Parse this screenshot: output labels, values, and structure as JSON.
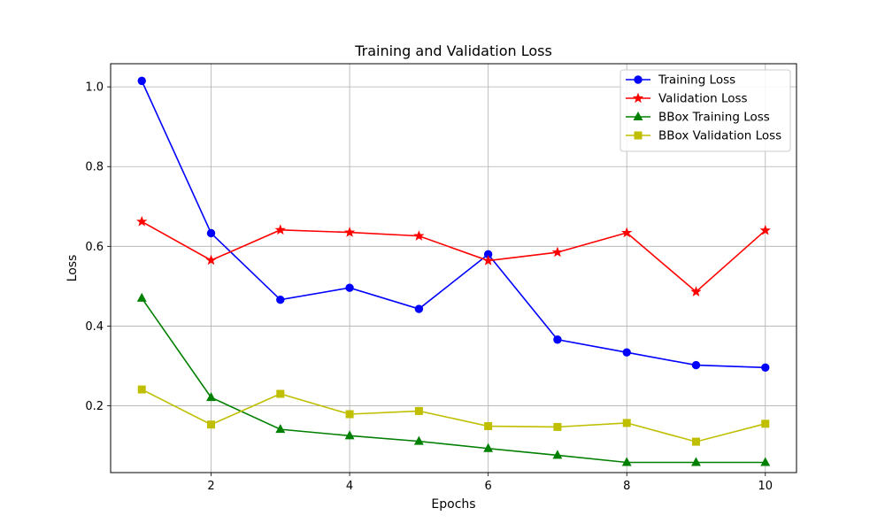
{
  "chart_data": {
    "type": "line",
    "title": "Training and Validation Loss",
    "xlabel": "Epochs",
    "ylabel": "Loss",
    "x": [
      1,
      2,
      3,
      4,
      5,
      6,
      7,
      8,
      9,
      10
    ],
    "xlim": [
      0.55,
      10.45
    ],
    "ylim": [
      0.0325,
      1.058
    ],
    "xticks": [
      2,
      4,
      6,
      8,
      10
    ],
    "yticks": [
      0.2,
      0.4,
      0.6,
      0.8,
      1.0
    ],
    "grid": true,
    "legend_position": "top-right",
    "series": [
      {
        "name": "Training Loss",
        "color": "#0000ff",
        "marker": "circle",
        "values": [
          1.015,
          0.633,
          0.466,
          0.496,
          0.443,
          0.58,
          0.366,
          0.334,
          0.302,
          0.296
        ]
      },
      {
        "name": "Validation Loss",
        "color": "#ff0000",
        "marker": "star",
        "values": [
          0.662,
          0.565,
          0.641,
          0.635,
          0.626,
          0.564,
          0.585,
          0.634,
          0.486,
          0.64
        ]
      },
      {
        "name": "BBox Training Loss",
        "color": "#008000",
        "marker": "triangle",
        "values": [
          0.47,
          0.221,
          0.141,
          0.125,
          0.111,
          0.093,
          0.076,
          0.058,
          0.058,
          0.058
        ]
      },
      {
        "name": "BBox Validation Loss",
        "color": "#bfbf00",
        "marker": "square",
        "values": [
          0.241,
          0.153,
          0.23,
          0.179,
          0.187,
          0.149,
          0.147,
          0.157,
          0.11,
          0.155
        ]
      }
    ]
  }
}
